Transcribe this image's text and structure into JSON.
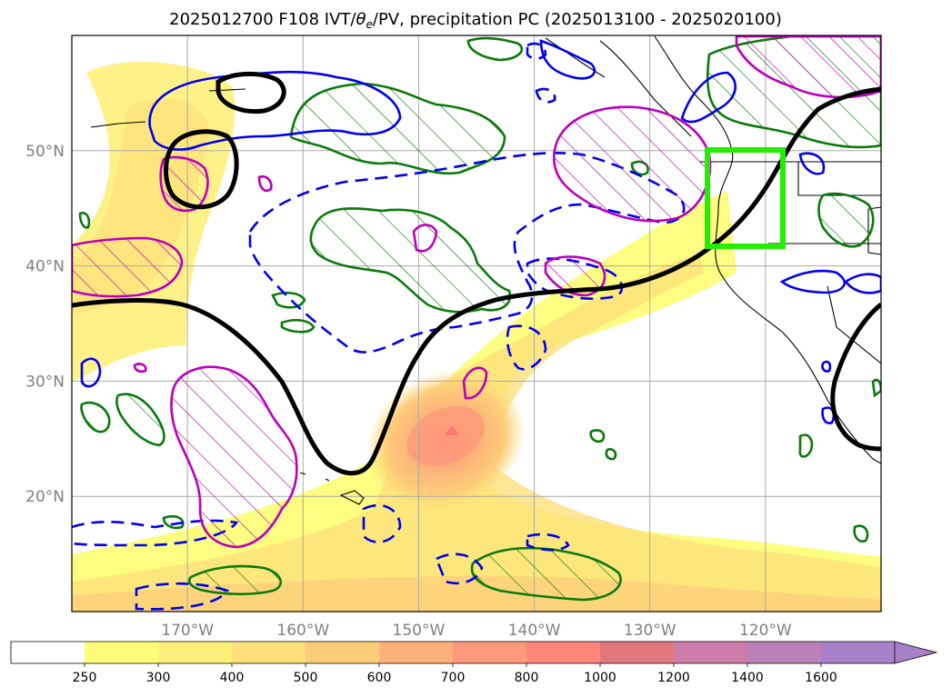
{
  "title": {
    "prefix": "2025012700 F108 IVT/",
    "theta": "θ",
    "theta_sub": "e",
    "suffix": "/PV, precipitation PC (2025013100 - 2025020100)"
  },
  "map": {
    "lat_range": [
      10,
      60
    ],
    "lon_range": [
      -180,
      -110
    ],
    "lat_ticks": [
      {
        "value": 20,
        "label": "20°N"
      },
      {
        "value": 30,
        "label": "30°N"
      },
      {
        "value": 40,
        "label": "40°N"
      },
      {
        "value": 50,
        "label": "50°N"
      }
    ],
    "lon_ticks": [
      {
        "value": -170,
        "label": "170°W"
      },
      {
        "value": -160,
        "label": "160°W"
      },
      {
        "value": -150,
        "label": "150°W"
      },
      {
        "value": -140,
        "label": "140°W"
      },
      {
        "value": -130,
        "label": "130°W"
      },
      {
        "value": -120,
        "label": "120°W"
      }
    ],
    "highlight_box": {
      "lon_range": [
        -125.5,
        -118.5
      ],
      "lat_range": [
        41.5,
        50
      ],
      "color": "#22ee00"
    },
    "colors": {
      "pv_contour": "#000000",
      "theta_positive": "#0a7a0a",
      "theta_negative": "#0000ee",
      "precip_hatch": "#bb00bb",
      "grid": "#aaaaaa"
    }
  },
  "colorbar": {
    "levels": [
      "250",
      "300",
      "400",
      "500",
      "600",
      "700",
      "800",
      "1000",
      "1200",
      "1400",
      "1600"
    ],
    "colors": [
      "#ffffff",
      "#fdfd7a",
      "#fdf07a",
      "#fde07a",
      "#fdcc7a",
      "#fdb07a",
      "#fd9a7a",
      "#fd857a",
      "#e0787d",
      "#cc7daa",
      "#bb80b8",
      "#a87fc9"
    ],
    "extend": "max"
  }
}
